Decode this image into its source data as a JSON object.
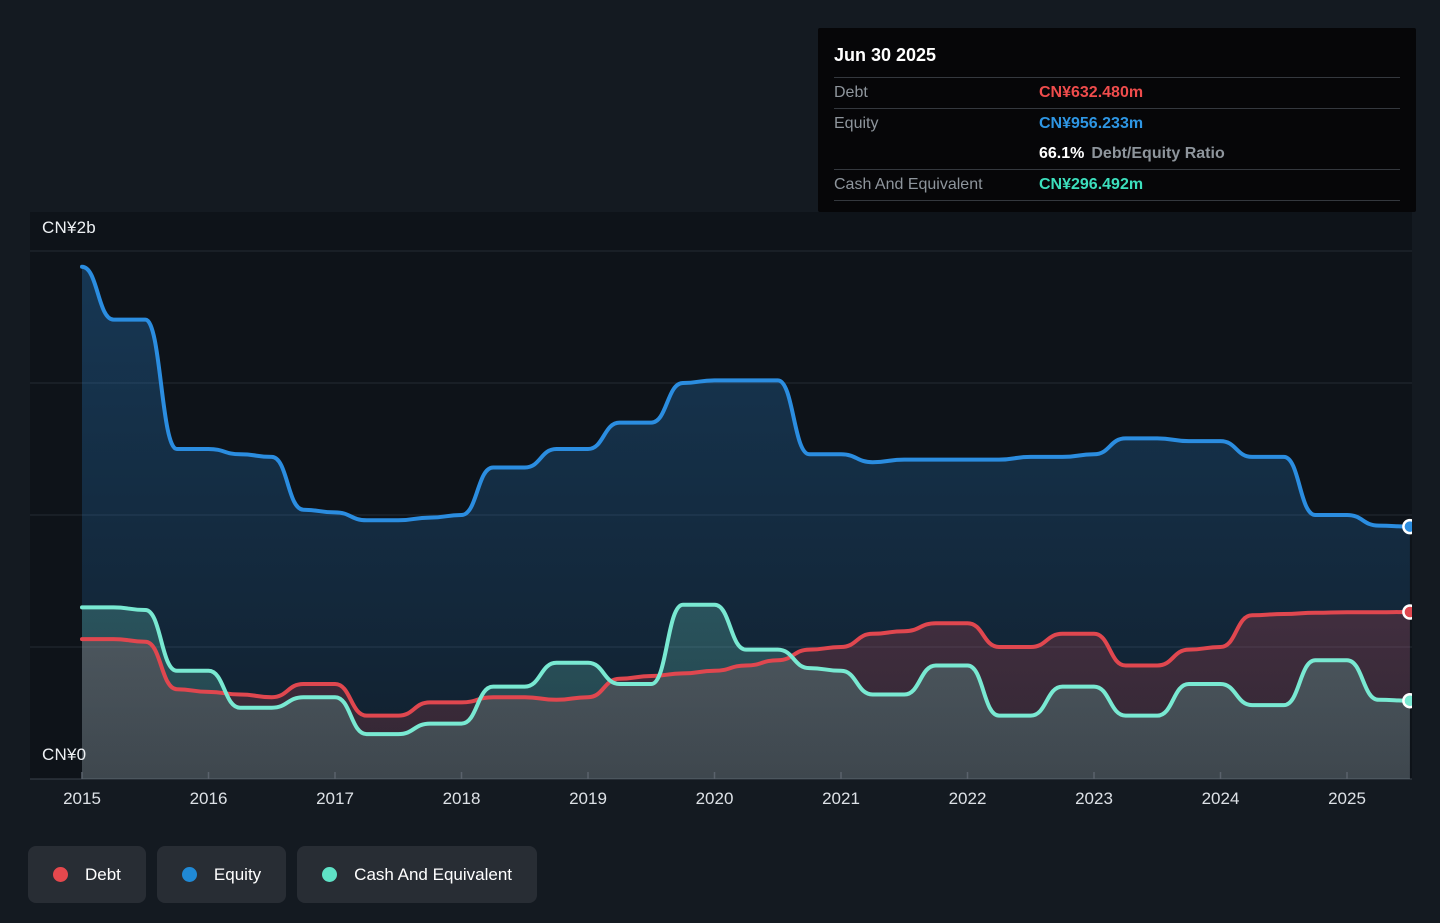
{
  "y_axis": {
    "top_label": "CN¥2b",
    "zero_label": "CN¥0"
  },
  "tooltip": {
    "title": "Jun 30 2025",
    "debt_label": "Debt",
    "debt_value": "CN¥632.480m",
    "debt_color": "#ef4c4c",
    "equity_label": "Equity",
    "equity_value": "CN¥956.233m",
    "equity_color": "#2e96e4",
    "ratio_value": "66.1%",
    "ratio_label": "Debt/Equity Ratio",
    "cash_label": "Cash And Equivalent",
    "cash_value": "CN¥296.492m",
    "cash_color": "#3cdfbd"
  },
  "legend": [
    {
      "slug": "debt",
      "label": "Debt",
      "color": "#e5484d"
    },
    {
      "slug": "equity",
      "label": "Equity",
      "color": "#2089d5"
    },
    {
      "slug": "cash",
      "label": "Cash And Equivalent",
      "color": "#5fe2c6"
    }
  ],
  "chart_data": {
    "type": "area",
    "unit": "CN¥ billions",
    "x_range": [
      2015.0,
      2025.5
    ],
    "ylim": [
      0,
      2
    ],
    "y_gridlines": [
      0,
      0.5,
      1,
      1.5,
      2
    ],
    "x_tick_years": [
      2015,
      2016,
      2017,
      2018,
      2019,
      2020,
      2021,
      2022,
      2023,
      2024,
      2025
    ],
    "x_tick_labels": [
      "2015",
      "2016",
      "2017",
      "2018",
      "2019",
      "2020",
      "2021",
      "2022",
      "2023",
      "2024",
      "2025"
    ],
    "grid": "horizontal-only",
    "legend_position": "bottom-left",
    "draw_order": [
      "Equity",
      "Debt",
      "Cash And Equivalent"
    ],
    "series": [
      {
        "name": "Equity",
        "color": "#2b8de0",
        "fill_rgb": "43,141,224",
        "points": [
          [
            2015.0,
            1.94
          ],
          [
            2015.25,
            1.74
          ],
          [
            2015.5,
            1.74
          ],
          [
            2015.75,
            1.25
          ],
          [
            2016.0,
            1.25
          ],
          [
            2016.25,
            1.23
          ],
          [
            2016.5,
            1.22
          ],
          [
            2016.75,
            1.02
          ],
          [
            2017.0,
            1.01
          ],
          [
            2017.25,
            0.98
          ],
          [
            2017.5,
            0.98
          ],
          [
            2017.75,
            0.99
          ],
          [
            2018.0,
            1.0
          ],
          [
            2018.25,
            1.18
          ],
          [
            2018.5,
            1.18
          ],
          [
            2018.75,
            1.25
          ],
          [
            2019.0,
            1.25
          ],
          [
            2019.25,
            1.35
          ],
          [
            2019.5,
            1.35
          ],
          [
            2019.75,
            1.5
          ],
          [
            2020.0,
            1.51
          ],
          [
            2020.25,
            1.51
          ],
          [
            2020.5,
            1.51
          ],
          [
            2020.75,
            1.23
          ],
          [
            2021.0,
            1.23
          ],
          [
            2021.25,
            1.2
          ],
          [
            2021.5,
            1.21
          ],
          [
            2021.75,
            1.21
          ],
          [
            2022.0,
            1.21
          ],
          [
            2022.25,
            1.21
          ],
          [
            2022.5,
            1.22
          ],
          [
            2022.75,
            1.22
          ],
          [
            2023.0,
            1.23
          ],
          [
            2023.25,
            1.29
          ],
          [
            2023.5,
            1.29
          ],
          [
            2023.75,
            1.28
          ],
          [
            2024.0,
            1.28
          ],
          [
            2024.25,
            1.22
          ],
          [
            2024.5,
            1.22
          ],
          [
            2024.75,
            1.0
          ],
          [
            2025.0,
            1.0
          ],
          [
            2025.25,
            0.96
          ],
          [
            2025.497,
            0.956233
          ]
        ]
      },
      {
        "name": "Debt",
        "color": "#e0474f",
        "fill_rgb": "224,71,79",
        "points": [
          [
            2015.0,
            0.53
          ],
          [
            2015.25,
            0.53
          ],
          [
            2015.5,
            0.52
          ],
          [
            2015.75,
            0.34
          ],
          [
            2016.0,
            0.33
          ],
          [
            2016.25,
            0.32
          ],
          [
            2016.5,
            0.31
          ],
          [
            2016.75,
            0.36
          ],
          [
            2017.0,
            0.36
          ],
          [
            2017.25,
            0.24
          ],
          [
            2017.5,
            0.24
          ],
          [
            2017.75,
            0.29
          ],
          [
            2018.0,
            0.29
          ],
          [
            2018.25,
            0.31
          ],
          [
            2018.5,
            0.31
          ],
          [
            2018.75,
            0.3
          ],
          [
            2019.0,
            0.31
          ],
          [
            2019.25,
            0.38
          ],
          [
            2019.5,
            0.39
          ],
          [
            2019.75,
            0.4
          ],
          [
            2020.0,
            0.41
          ],
          [
            2020.25,
            0.43
          ],
          [
            2020.5,
            0.45
          ],
          [
            2020.75,
            0.49
          ],
          [
            2021.0,
            0.5
          ],
          [
            2021.25,
            0.55
          ],
          [
            2021.5,
            0.56
          ],
          [
            2021.75,
            0.59
          ],
          [
            2022.0,
            0.59
          ],
          [
            2022.25,
            0.5
          ],
          [
            2022.5,
            0.5
          ],
          [
            2022.75,
            0.55
          ],
          [
            2023.0,
            0.55
          ],
          [
            2023.25,
            0.43
          ],
          [
            2023.5,
            0.43
          ],
          [
            2023.75,
            0.49
          ],
          [
            2024.0,
            0.5
          ],
          [
            2024.25,
            0.62
          ],
          [
            2024.5,
            0.625
          ],
          [
            2024.75,
            0.63
          ],
          [
            2025.0,
            0.632
          ],
          [
            2025.25,
            0.632
          ],
          [
            2025.497,
            0.63248
          ]
        ]
      },
      {
        "name": "Cash And Equivalent",
        "color": "#79e9d2",
        "fill_rgb": "121,233,210",
        "points": [
          [
            2015.0,
            0.65
          ],
          [
            2015.25,
            0.65
          ],
          [
            2015.5,
            0.64
          ],
          [
            2015.75,
            0.41
          ],
          [
            2016.0,
            0.41
          ],
          [
            2016.25,
            0.27
          ],
          [
            2016.5,
            0.27
          ],
          [
            2016.75,
            0.31
          ],
          [
            2017.0,
            0.31
          ],
          [
            2017.25,
            0.17
          ],
          [
            2017.5,
            0.17
          ],
          [
            2017.75,
            0.21
          ],
          [
            2018.0,
            0.21
          ],
          [
            2018.25,
            0.35
          ],
          [
            2018.5,
            0.35
          ],
          [
            2018.75,
            0.44
          ],
          [
            2019.0,
            0.44
          ],
          [
            2019.25,
            0.36
          ],
          [
            2019.5,
            0.36
          ],
          [
            2019.75,
            0.66
          ],
          [
            2020.0,
            0.66
          ],
          [
            2020.25,
            0.49
          ],
          [
            2020.5,
            0.49
          ],
          [
            2020.75,
            0.42
          ],
          [
            2021.0,
            0.41
          ],
          [
            2021.25,
            0.32
          ],
          [
            2021.5,
            0.32
          ],
          [
            2021.75,
            0.43
          ],
          [
            2022.0,
            0.43
          ],
          [
            2022.25,
            0.24
          ],
          [
            2022.5,
            0.24
          ],
          [
            2022.75,
            0.35
          ],
          [
            2023.0,
            0.35
          ],
          [
            2023.25,
            0.24
          ],
          [
            2023.5,
            0.24
          ],
          [
            2023.75,
            0.36
          ],
          [
            2024.0,
            0.36
          ],
          [
            2024.25,
            0.28
          ],
          [
            2024.5,
            0.28
          ],
          [
            2024.75,
            0.45
          ],
          [
            2025.0,
            0.45
          ],
          [
            2025.25,
            0.3
          ],
          [
            2025.497,
            0.296492
          ]
        ]
      }
    ],
    "colors": {
      "page_background": "#141a21",
      "plot_background": "#0e1319",
      "gridline": "#242b34",
      "axis_line": "#3a424c",
      "tick": "#5a626c",
      "tick_label": "#dde1e6"
    }
  }
}
